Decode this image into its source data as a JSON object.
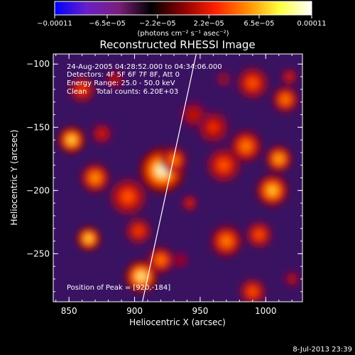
{
  "chart_data": {
    "type": "heatmap",
    "title": "Reconstructed RHESSI Image",
    "xlabel": "Heliocentric X (arcsec)",
    "ylabel": "Heliocentric Y (arcsec)",
    "xlim": [
      838,
      1028
    ],
    "ylim": [
      -288,
      -92
    ],
    "xticks": [
      {
        "value": 850,
        "label": "850"
      },
      {
        "value": 900,
        "label": "900"
      },
      {
        "value": 950,
        "label": "950"
      },
      {
        "value": 1000,
        "label": "1000"
      }
    ],
    "yticks": [
      {
        "value": -100,
        "label": "−100"
      },
      {
        "value": -150,
        "label": "−150"
      },
      {
        "value": -200,
        "label": "−200"
      },
      {
        "value": -250,
        "label": "−250"
      }
    ],
    "colorbar": {
      "range": [
        -0.00011,
        0.00011
      ],
      "ticks": [
        {
          "value": -0.00011,
          "label": "−0.00011"
        },
        {
          "value": -6.5e-05,
          "label": "−6.5e−05"
        },
        {
          "value": -2.2e-05,
          "label": "−2.2e−05"
        },
        {
          "value": 2.2e-05,
          "label": "2.2e−05"
        },
        {
          "value": 6.5e-05,
          "label": "6.5e−05"
        },
        {
          "value": 0.00011,
          "label": "0.00011"
        }
      ],
      "unit": "(photons cm⁻² s⁻¹ asec⁻²)",
      "colors": [
        "#0000ff",
        "#6a1fc8",
        "#7a1f7a",
        "#000000",
        "#8b0000",
        "#ff2000",
        "#ff8c00",
        "#ffff40",
        "#ffffff"
      ]
    },
    "annotations": [
      "24-Aug-2005 04:28:52.000 to 04:34:06.000",
      "Detectors: 4F 5F 6F 7F 8F, Att 0",
      "Energy Range: 25.0 - 50.0 keV",
      "Clean    Total counts: 6.20E+03"
    ],
    "position_label": "Position of Peak = [920,-184]",
    "limb_line": [
      {
        "x": 906,
        "y": -288
      },
      {
        "x": 947,
        "y": -92
      }
    ],
    "sources": [
      {
        "x": 921,
        "y": -184,
        "r": 17,
        "level": 1.0
      },
      {
        "x": 930,
        "y": -176,
        "r": 10,
        "level": 0.7
      },
      {
        "x": 852,
        "y": -160,
        "r": 10,
        "level": 0.9
      },
      {
        "x": 870,
        "y": -190,
        "r": 11,
        "level": 0.75
      },
      {
        "x": 860,
        "y": -120,
        "r": 10,
        "level": 0.55
      },
      {
        "x": 895,
        "y": -205,
        "r": 14,
        "level": 0.6
      },
      {
        "x": 885,
        "y": -112,
        "r": 7,
        "level": 0.4
      },
      {
        "x": 968,
        "y": -180,
        "r": 13,
        "level": 0.6
      },
      {
        "x": 985,
        "y": -165,
        "r": 12,
        "level": 0.7
      },
      {
        "x": 1010,
        "y": -175,
        "r": 10,
        "level": 0.8
      },
      {
        "x": 1005,
        "y": -200,
        "r": 12,
        "level": 0.85
      },
      {
        "x": 1015,
        "y": -128,
        "r": 10,
        "level": 0.7
      },
      {
        "x": 990,
        "y": -115,
        "r": 12,
        "level": 0.6
      },
      {
        "x": 1018,
        "y": -110,
        "r": 6,
        "level": 0.5
      },
      {
        "x": 960,
        "y": -150,
        "r": 12,
        "level": 0.5
      },
      {
        "x": 945,
        "y": -140,
        "r": 10,
        "level": 0.4
      },
      {
        "x": 968,
        "y": -112,
        "r": 6,
        "level": 0.3
      },
      {
        "x": 865,
        "y": -238,
        "r": 9,
        "level": 0.9
      },
      {
        "x": 903,
        "y": -232,
        "r": 10,
        "level": 0.55
      },
      {
        "x": 905,
        "y": -268,
        "r": 12,
        "level": 0.95
      },
      {
        "x": 920,
        "y": -255,
        "r": 10,
        "level": 0.7
      },
      {
        "x": 970,
        "y": -240,
        "r": 12,
        "level": 0.7
      },
      {
        "x": 995,
        "y": -235,
        "r": 10,
        "level": 0.6
      },
      {
        "x": 990,
        "y": -280,
        "r": 10,
        "level": 0.6
      },
      {
        "x": 1020,
        "y": -270,
        "r": 6,
        "level": 0.4
      },
      {
        "x": 942,
        "y": -210,
        "r": 6,
        "level": 0.5
      },
      {
        "x": 935,
        "y": -255,
        "r": 6,
        "level": 0.35
      },
      {
        "x": 875,
        "y": -155,
        "r": 8,
        "level": 0.45
      }
    ],
    "grid": false,
    "legend": "none"
  },
  "footer": {
    "timestamp": "8-Jul-2013 23:39"
  }
}
